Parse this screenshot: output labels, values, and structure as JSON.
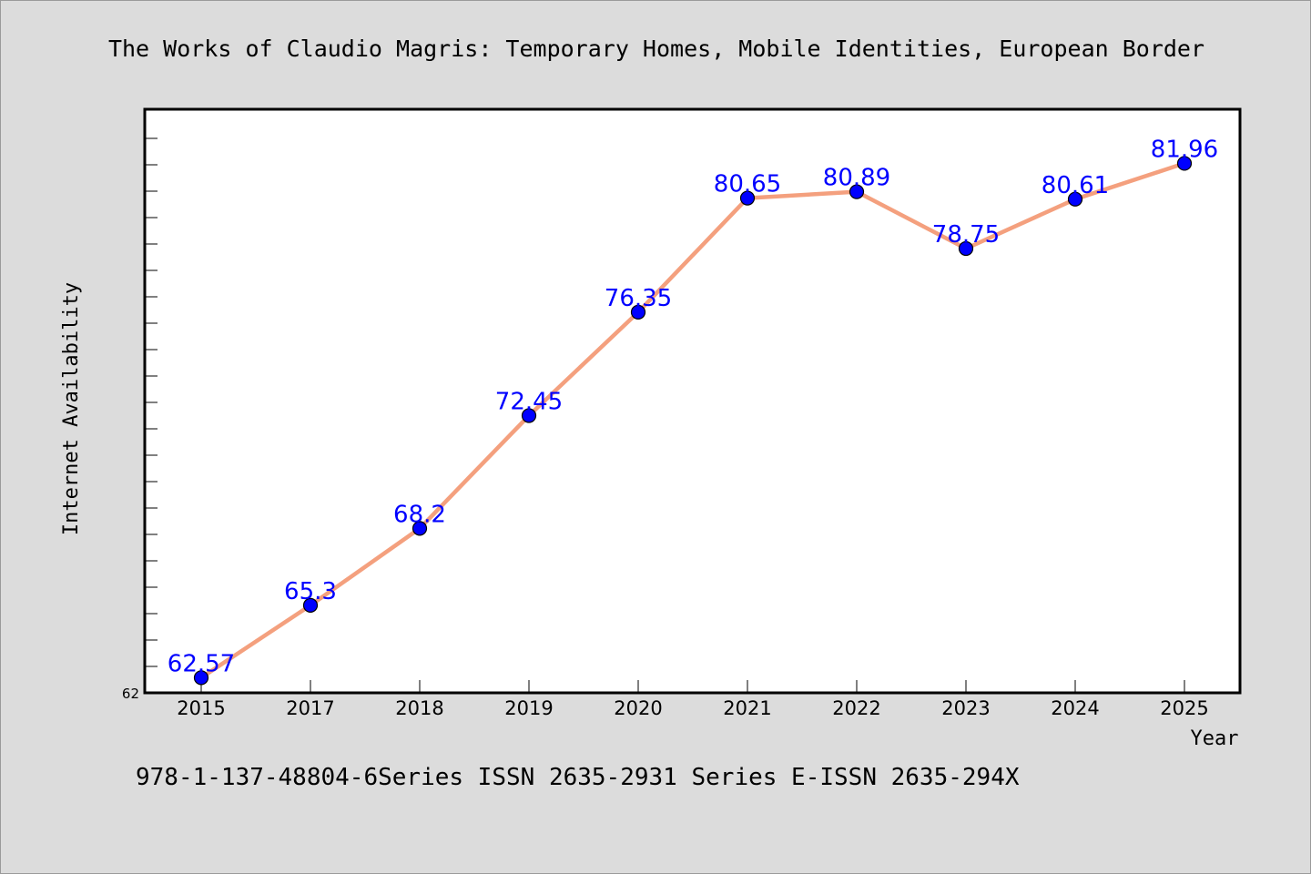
{
  "chart_data": {
    "type": "line",
    "title": "The Works of Claudio Magris: Temporary Homes, Mobile Identities, European Border",
    "xlabel": "Year",
    "ylabel": "Internet Availability",
    "categories": [
      "2015",
      "2017",
      "2018",
      "2019",
      "2020",
      "2021",
      "2022",
      "2023",
      "2024",
      "2025"
    ],
    "series": [
      {
        "values": [
          62.57,
          65.3,
          68.2,
          72.45,
          76.35,
          80.65,
          80.89,
          78.75,
          80.61,
          81.96
        ]
      }
    ],
    "data_labels": [
      "62.57",
      "65.3",
      "68.2",
      "72.45",
      "76.35",
      "80.65",
      "80.89",
      "78.75",
      "80.61",
      "81.96"
    ],
    "ylim": [
      62,
      84
    ],
    "ytick_labels": [
      "62"
    ],
    "grid": false,
    "line_color": "#f4a07e",
    "marker_color": "#0000ff",
    "label_color": "#0000ff",
    "footer": "978-1-137-48804-6Series ISSN 2635-2931 Series E-ISSN 2635-294X"
  }
}
